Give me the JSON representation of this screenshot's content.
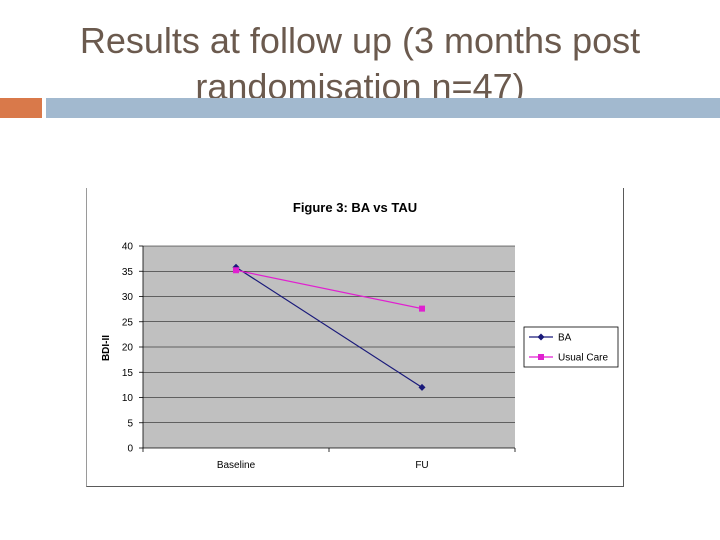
{
  "slide": {
    "title": "Results at follow up (3 months post randomisation n=47)"
  },
  "colors": {
    "title_text": "#6b5a4e",
    "accent_orange": "#d9794a",
    "accent_blue": "#a2b9cf",
    "plot_background": "#c0c0c0",
    "series_ba": "#1a1a7a",
    "series_usual_care": "#e020d0"
  },
  "chart_data": {
    "type": "line",
    "title": "Figure 3: BA vs TAU",
    "xlabel": "",
    "ylabel": "BDI-II",
    "categories": [
      "Baseline",
      "FU"
    ],
    "ylim": [
      0,
      40
    ],
    "yticks": [
      0,
      5,
      10,
      15,
      20,
      25,
      30,
      35,
      40
    ],
    "grid": true,
    "legend_position": "right",
    "series": [
      {
        "name": "BA",
        "values": [
          35.8,
          12.0
        ],
        "color": "#1a1a7a",
        "marker": "diamond"
      },
      {
        "name": "Usual Care",
        "values": [
          35.2,
          27.6
        ],
        "color": "#e020d0",
        "marker": "square"
      }
    ]
  }
}
